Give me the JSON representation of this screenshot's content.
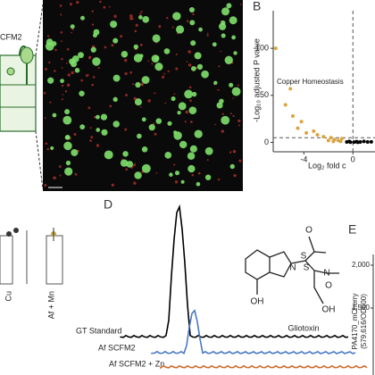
{
  "panel_a": {
    "label_fragment": "CFM2"
  },
  "panel_b": {
    "label": "B",
    "ylabel": "-Log₁₀ adjusted P value",
    "xlabel": "Log₂ fold c",
    "annotation": "Copper Homeostasis",
    "xlim": [
      -6.5,
      1.8
    ],
    "ylim": [
      -10,
      140
    ],
    "xticks": [
      -4,
      0
    ],
    "yticks": [
      0,
      50,
      100
    ],
    "cutoff_x": 0,
    "cutoff_y": 5,
    "groups": [
      {
        "color": "#d9a441",
        "x": [
          -6.3,
          -5.1,
          -5.5,
          -4.9,
          -4.2,
          -4.5,
          -3.8,
          -3.2,
          -2.9,
          -2.4,
          -1.8,
          -1.5,
          -1.2,
          -0.9,
          -1.0,
          -1.6,
          -2.0
        ],
        "y": [
          100,
          57,
          40,
          28,
          22,
          15,
          10,
          12,
          8,
          6,
          5,
          3,
          2,
          4,
          1,
          1,
          2
        ]
      },
      {
        "color": "#000000",
        "x": [
          -0.5,
          -0.3,
          0.1,
          0.3,
          0.6,
          0.9,
          1.2,
          1.5,
          -0.2,
          0.4
        ],
        "y": [
          0.5,
          1,
          0.3,
          0.8,
          0.5,
          1,
          0.4,
          0.6,
          0.2,
          0.1
        ]
      }
    ]
  },
  "panel_c": {
    "tick_labels": [
      "Cu",
      "Af + Mn"
    ]
  },
  "panel_d": {
    "label": "D",
    "traces": [
      {
        "name": "GT Standard",
        "color": "#000000"
      },
      {
        "name": "Af SCFM2",
        "color": "#4a78c2"
      },
      {
        "name": "Af SCFM2 + Zn",
        "color": "#d0692a"
      }
    ],
    "compound": "Gliotoxin",
    "atoms": [
      "O",
      "O",
      "N",
      "S",
      "S",
      "N",
      "OH",
      "OH"
    ]
  },
  "panel_e": {
    "label": "E",
    "ytick_labels": [
      "2,000",
      "1,500"
    ],
    "ylabel": [
      "PA4170_mCherry",
      "(579,616/OD600)"
    ]
  }
}
